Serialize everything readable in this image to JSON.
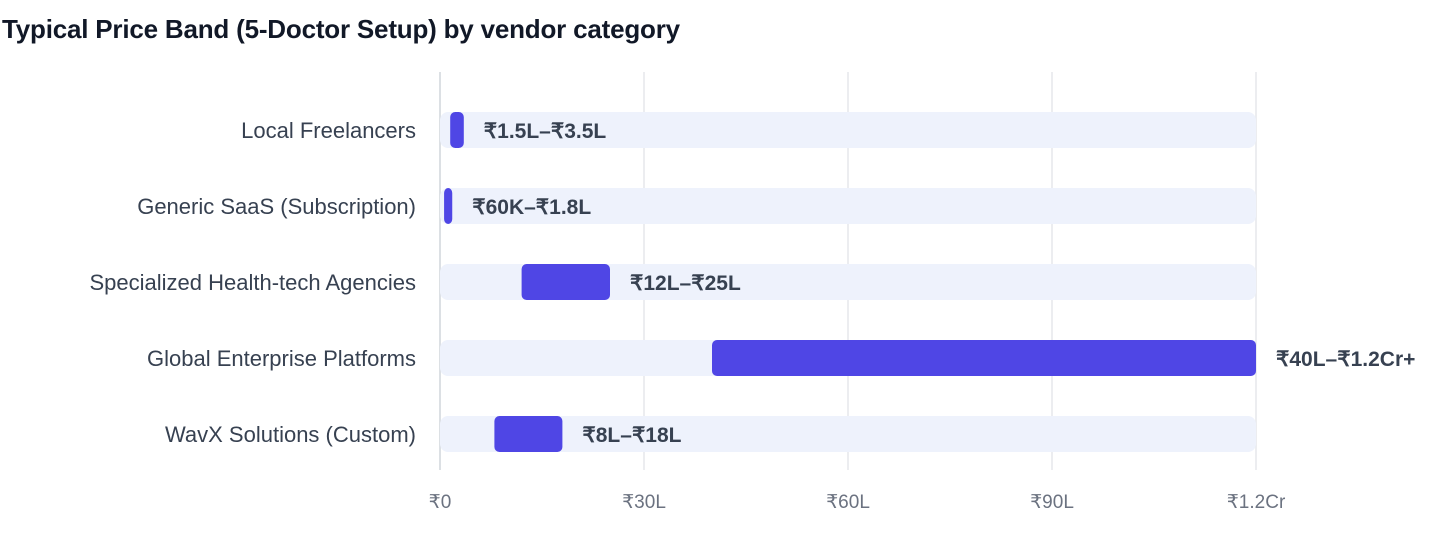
{
  "chart_data": {
    "type": "bar",
    "orientation": "horizontal",
    "subtype": "floating-range",
    "title": "Typical Price Band (5-Doctor Setup) by vendor category",
    "xlabel": "",
    "ylabel": "",
    "unit": "₹ Lakh",
    "xlim": [
      0,
      120
    ],
    "xticks": [
      {
        "value": 0,
        "label": "₹0"
      },
      {
        "value": 30,
        "label": "₹30L"
      },
      {
        "value": 60,
        "label": "₹60L"
      },
      {
        "value": 90,
        "label": "₹90L"
      },
      {
        "value": 120,
        "label": "₹1.2Cr"
      }
    ],
    "grid": true,
    "legend": "none",
    "background_track": true,
    "colors": {
      "bar": "#4f46e5",
      "track": "#eef2fc",
      "grid": "#e5e7eb",
      "axis": "#d1d5db"
    },
    "categories": [
      "Local Freelancers",
      "Generic SaaS (Subscription)",
      "Specialized Health-tech Agencies",
      "Global Enterprise Platforms",
      "WavX Solutions (Custom)"
    ],
    "ranges": [
      {
        "low": 1.5,
        "high": 3.5,
        "label": "₹1.5L–₹3.5L"
      },
      {
        "low": 0.6,
        "high": 1.8,
        "label": "₹60K–₹1.8L"
      },
      {
        "low": 12,
        "high": 25,
        "label": "₹12L–₹25L"
      },
      {
        "low": 40,
        "high": 120,
        "label": "₹40L–₹1.2Cr+"
      },
      {
        "low": 8,
        "high": 18,
        "label": "₹8L–₹18L"
      }
    ]
  }
}
